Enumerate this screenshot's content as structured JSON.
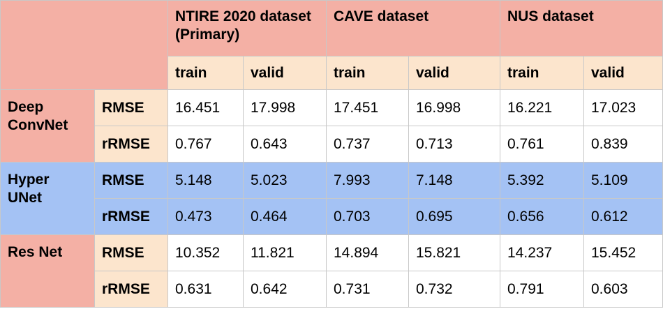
{
  "header": {
    "datasets": [
      "NTIRE 2020 dataset (Primary)",
      "CAVE dataset",
      "NUS dataset"
    ],
    "splits": [
      "train",
      "valid",
      "train",
      "valid",
      "train",
      "valid"
    ]
  },
  "models": [
    {
      "name": "Deep ConvNet",
      "rows": [
        {
          "metric": "RMSE",
          "values": [
            "16.451",
            "17.998",
            "17.451",
            "16.998",
            "16.221",
            "17.023"
          ]
        },
        {
          "metric": "rRMSE",
          "values": [
            "0.767",
            "0.643",
            "0.737",
            "0.713",
            "0.761",
            "0.839"
          ]
        }
      ]
    },
    {
      "name": "Hyper UNet",
      "rows": [
        {
          "metric": "RMSE",
          "values": [
            "5.148",
            "5.023",
            "7.993",
            "7.148",
            "5.392",
            "5.109"
          ]
        },
        {
          "metric": "rRMSE",
          "values": [
            "0.473",
            "0.464",
            "0.703",
            "0.695",
            "0.656",
            "0.612"
          ]
        }
      ]
    },
    {
      "name": "Res Net",
      "rows": [
        {
          "metric": "RMSE",
          "values": [
            "10.352",
            "11.821",
            "14.894",
            "15.821",
            "14.237",
            "15.452"
          ]
        },
        {
          "metric": "rRMSE",
          "values": [
            "0.631",
            "0.642",
            "0.731",
            "0.732",
            "0.791",
            "0.603"
          ]
        }
      ]
    }
  ],
  "colors": {
    "header_salmon": "#f4b0a5",
    "subheader_peach": "#fce5cd",
    "highlight_blue": "#a4c2f4"
  }
}
